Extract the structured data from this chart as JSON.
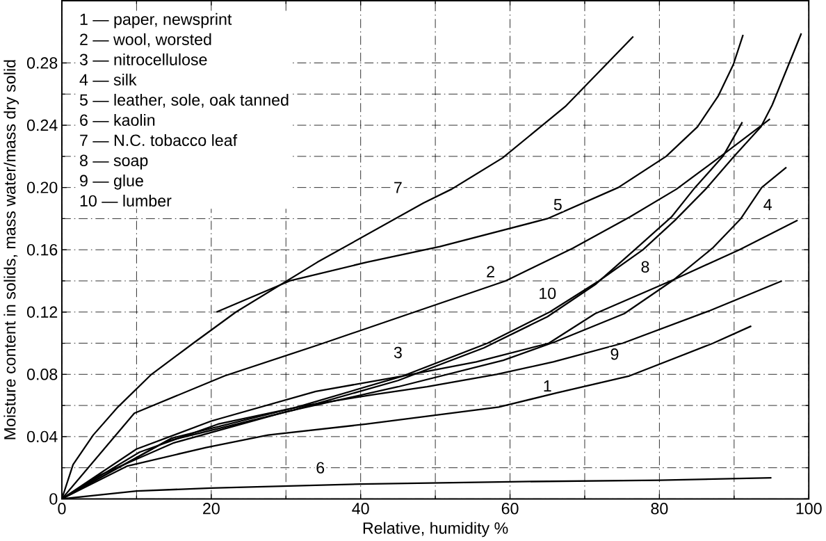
{
  "chart_data": {
    "type": "line",
    "xlabel": "Relative, humidity %",
    "ylabel": "Moisture content in solids, mass water/mass dry solid",
    "xlim": [
      0,
      100
    ],
    "ylim": [
      0,
      0.32
    ],
    "xticks": [
      0,
      20,
      40,
      60,
      80,
      100
    ],
    "yticks": [
      0,
      0.04,
      0.08,
      0.12,
      0.16,
      {
        "value": 0.2,
        "label": "0.20"
      },
      0.24,
      0.28
    ],
    "grid": true,
    "marker": "none",
    "line_style": "solid",
    "series": [
      {
        "color": "#000000",
        "x": [
          0,
          8.7,
          19.3,
          27.6,
          40.7,
          58.5,
          66.2,
          76,
          87.2,
          92.3
        ],
        "values": [
          0,
          0.021,
          0.033,
          0.041,
          0.048,
          0.059,
          0.068,
          0.079,
          0.1,
          0.111
        ]
      },
      {
        "color": "#000000",
        "x": [
          0,
          9.7,
          21.8,
          34.4,
          47.2,
          59.4,
          68.4,
          76,
          82.3,
          88.2,
          94.8
        ],
        "values": [
          0,
          0.055,
          0.079,
          0.099,
          0.12,
          0.14,
          0.161,
          0.181,
          0.199,
          0.22,
          0.244
        ]
      },
      {
        "color": "#000000",
        "x": [
          0,
          10,
          20,
          34,
          45.7,
          55.5,
          65.2,
          71.4,
          82,
          90.7,
          98.5
        ],
        "values": [
          0,
          0.032,
          0.05,
          0.069,
          0.079,
          0.088,
          0.1,
          0.119,
          0.141,
          0.16,
          0.179
        ]
      },
      {
        "color": "#000000",
        "x": [
          0,
          5,
          15,
          30,
          45,
          59.1,
          66.1,
          75.3,
          82,
          87.1,
          90.9,
          93.7,
          97
        ],
        "values": [
          0,
          0.015,
          0.036,
          0.056,
          0.072,
          0.089,
          0.101,
          0.119,
          0.141,
          0.161,
          0.18,
          0.2,
          0.213
        ]
      },
      {
        "color": "#000000",
        "x": [
          20.7,
          30.5,
          40.8,
          50.6,
          65,
          74.5,
          80.9,
          85.1,
          87.9,
          89.9,
          91.2
        ],
        "values": [
          0.12,
          0.14,
          0.152,
          0.162,
          0.18,
          0.2,
          0.22,
          0.239,
          0.259,
          0.279,
          0.298
        ]
      },
      {
        "color": "#000000",
        "x": [
          0,
          10,
          20,
          40,
          60,
          80,
          95
        ],
        "values": [
          0,
          0.005,
          0.007,
          0.0095,
          0.011,
          0.012,
          0.0135
        ]
      },
      {
        "color": "#000000",
        "x": [
          0,
          1.5,
          4.2,
          7.5,
          12,
          17.6,
          23.3,
          34.2,
          48.4,
          52.2,
          59,
          67.4,
          76.5
        ],
        "values": [
          0,
          0.022,
          0.041,
          0.059,
          0.08,
          0.1,
          0.12,
          0.152,
          0.19,
          0.199,
          0.219,
          0.252,
          0.297
        ]
      },
      {
        "color": "#000000",
        "x": [
          0,
          14.7,
          31.5,
          45.7,
          57,
          65.3,
          71.9,
          77.8,
          82.1,
          86.2,
          90,
          93.6,
          95.1,
          99
        ],
        "values": [
          0,
          0.039,
          0.059,
          0.079,
          0.1,
          0.12,
          0.14,
          0.16,
          0.179,
          0.199,
          0.22,
          0.239,
          0.253,
          0.299
        ]
      },
      {
        "color": "#000000",
        "x": [
          0,
          10.4,
          20.9,
          32.6,
          41.8,
          48.9,
          58.2,
          65.8,
          75.1,
          86.8,
          96.4
        ],
        "values": [
          0,
          0.03,
          0.048,
          0.06,
          0.067,
          0.072,
          0.08,
          0.088,
          0.1,
          0.121,
          0.14
        ]
      },
      {
        "color": "#000000",
        "x": [
          0,
          14,
          31,
          45,
          56.5,
          65,
          71.5,
          76.7,
          81.6,
          84.6,
          88.5,
          91.1
        ],
        "values": [
          0,
          0.037,
          0.057,
          0.076,
          0.097,
          0.117,
          0.138,
          0.16,
          0.181,
          0.199,
          0.22,
          0.242
        ]
      }
    ],
    "annotations": [
      "1 — paper, newsprint",
      "2 — wool, worsted",
      "3 — nitrocellulose",
      "4 — silk",
      "5 — leather, sole, oak tanned",
      "6 — kaolin",
      "7 — N.C. tobacco leaf",
      "8 — soap",
      "9 — glue",
      "10 — lumber",
      {
        "text": "1",
        "x": 65,
        "y": 0.0725
      },
      {
        "text": "2",
        "x": 57.4,
        "y": 0.146
      },
      {
        "text": "3",
        "x": 45,
        "y": 0.094
      },
      {
        "text": "4",
        "x": 94.5,
        "y": 0.189
      },
      {
        "text": "5",
        "x": 66.4,
        "y": 0.189
      },
      {
        "text": "6",
        "x": 34.6,
        "y": 0.02
      },
      {
        "text": "7",
        "x": 45,
        "y": 0.2
      },
      {
        "text": "8",
        "x": 78.1,
        "y": 0.149
      },
      {
        "text": "9",
        "x": 74,
        "y": 0.093
      },
      {
        "text": "10",
        "x": 65,
        "y": 0.132
      }
    ]
  }
}
